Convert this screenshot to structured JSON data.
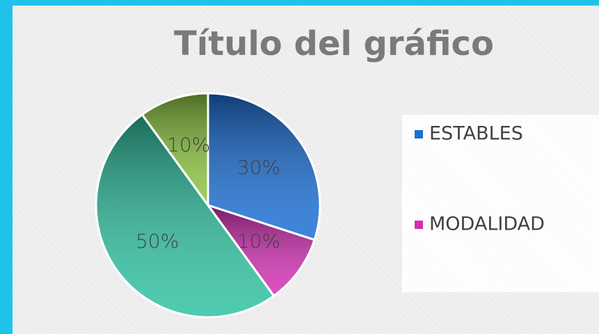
{
  "chart_data": {
    "type": "pie",
    "title": "Título del gráfico",
    "categories": [
      "ESTABLES",
      "MODALIDAD",
      null,
      null
    ],
    "values": [
      30,
      10,
      50,
      10
    ],
    "value_labels": [
      "30%",
      "10%",
      "50%",
      "10%"
    ],
    "colors": [
      "#1a6fd6",
      "#d42fb4",
      "#2fc2a2",
      "#8dc63f"
    ]
  }
}
